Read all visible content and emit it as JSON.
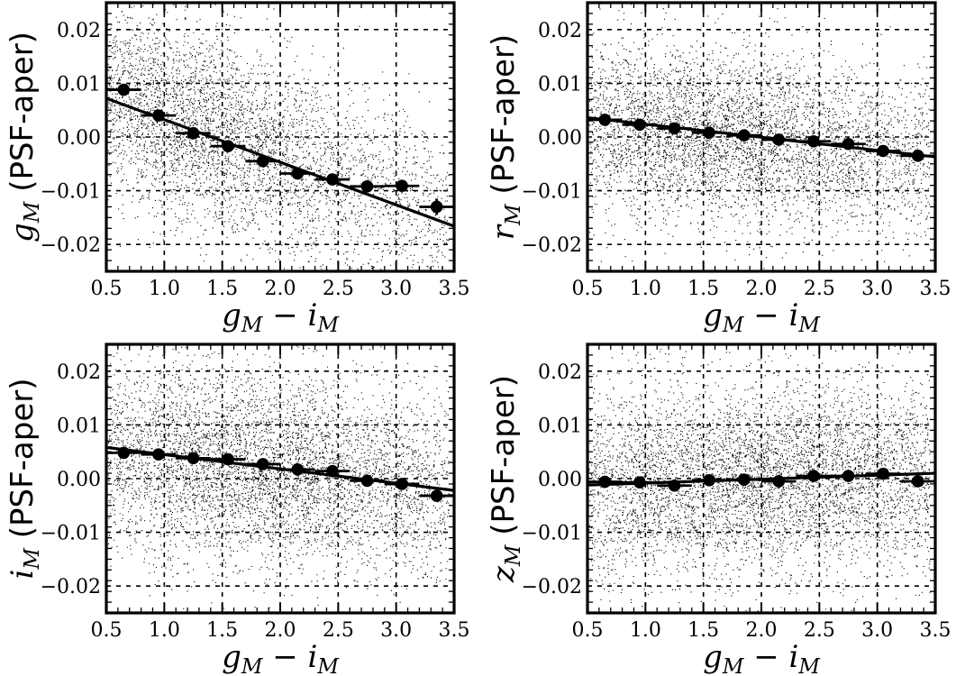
{
  "figure": {
    "title": "",
    "axes_style": {
      "frame_color": "#000000",
      "grid_color": "#000000",
      "point_color": "#000000"
    }
  },
  "chart_data": [
    {
      "id": "g",
      "type": "scatter",
      "title": "",
      "xlabel_main": "g",
      "xlabel_sub1": "M",
      "xlabel_op": " − ",
      "xlabel_main2": "i",
      "xlabel_sub2": "M",
      "ylabel_main": "g",
      "ylabel_sub": "M",
      "ylabel_rest": " (PSF-aper)",
      "xlim": [
        0.5,
        3.5
      ],
      "ylim": [
        -0.025,
        0.025
      ],
      "xticks": [
        0.5,
        1.0,
        1.5,
        2.0,
        2.5,
        3.0,
        3.5
      ],
      "xtick_labels": [
        "0.5",
        "1.0",
        "1.5",
        "2.0",
        "2.5",
        "3.0",
        "3.5"
      ],
      "yticks": [
        -0.02,
        -0.01,
        0.0,
        0.01,
        0.02
      ],
      "ytick_labels": [
        "−0.02",
        "−0.01",
        "0.00",
        "0.01",
        "0.02"
      ],
      "grid": true,
      "scatter_density": {
        "center_x": 1.3,
        "spread_x": 0.6,
        "center_y": 0.002,
        "spread_y": 0.009,
        "slope": -0.008,
        "n": 6500
      },
      "binned_points": {
        "x": [
          0.65,
          0.95,
          1.25,
          1.55,
          1.85,
          2.15,
          2.45,
          2.75,
          3.05,
          3.35
        ],
        "y": [
          0.0088,
          0.004,
          0.0007,
          -0.0017,
          -0.0045,
          -0.0068,
          -0.0079,
          -0.0092,
          -0.0091,
          -0.013
        ],
        "xerr": [
          0.15,
          0.15,
          0.15,
          0.15,
          0.15,
          0.15,
          0.15,
          0.15,
          0.15,
          0.15
        ],
        "yerr": [
          0.0008,
          0.0006,
          0.0005,
          0.0005,
          0.0005,
          0.0005,
          0.0005,
          0.0006,
          0.0008,
          0.0015
        ]
      },
      "fit_line": {
        "x": [
          0.5,
          3.5
        ],
        "y": [
          0.0072,
          -0.0166
        ]
      }
    },
    {
      "id": "r",
      "type": "scatter",
      "title": "",
      "xlabel_main": "g",
      "xlabel_sub1": "M",
      "xlabel_op": " − ",
      "xlabel_main2": "i",
      "xlabel_sub2": "M",
      "ylabel_main": "r",
      "ylabel_sub": "M",
      "ylabel_rest": " (PSF-aper)",
      "xlim": [
        0.5,
        3.5
      ],
      "ylim": [
        -0.025,
        0.025
      ],
      "xticks": [
        0.5,
        1.0,
        1.5,
        2.0,
        2.5,
        3.0,
        3.5
      ],
      "xtick_labels": [
        "0.5",
        "1.0",
        "1.5",
        "2.0",
        "2.5",
        "3.0",
        "3.5"
      ],
      "yticks": [
        -0.02,
        -0.01,
        0.0,
        0.01,
        0.02
      ],
      "ytick_labels": [
        "−0.02",
        "−0.01",
        "0.00",
        "0.01",
        "0.02"
      ],
      "grid": true,
      "scatter_density": {
        "center_x": 1.6,
        "spread_x": 0.75,
        "center_y": 0.0,
        "spread_y": 0.008,
        "slope": -0.002,
        "n": 6500
      },
      "binned_points": {
        "x": [
          0.65,
          0.95,
          1.25,
          1.55,
          1.85,
          2.15,
          2.45,
          2.75,
          3.05,
          3.35
        ],
        "y": [
          0.0032,
          0.0023,
          0.0016,
          0.0008,
          0.0003,
          -0.0005,
          -0.0008,
          -0.0013,
          -0.0026,
          -0.0035
        ],
        "xerr": [
          0.15,
          0.15,
          0.15,
          0.15,
          0.15,
          0.15,
          0.15,
          0.15,
          0.15,
          0.15
        ],
        "yerr": [
          0.0005,
          0.0005,
          0.0004,
          0.0004,
          0.0004,
          0.0004,
          0.0004,
          0.0004,
          0.0005,
          0.0006
        ]
      },
      "fit_line": {
        "x": [
          0.5,
          3.5
        ],
        "y": [
          0.0036,
          -0.0037
        ]
      }
    },
    {
      "id": "i",
      "type": "scatter",
      "title": "",
      "xlabel_main": "g",
      "xlabel_sub1": "M",
      "xlabel_op": " − ",
      "xlabel_main2": "i",
      "xlabel_sub2": "M",
      "ylabel_main": "i",
      "ylabel_sub": "M",
      "ylabel_rest": " (PSF-aper)",
      "xlim": [
        0.5,
        3.5
      ],
      "ylim": [
        -0.025,
        0.025
      ],
      "xticks": [
        0.5,
        1.0,
        1.5,
        2.0,
        2.5,
        3.0,
        3.5
      ],
      "xtick_labels": [
        "0.5",
        "1.0",
        "1.5",
        "2.0",
        "2.5",
        "3.0",
        "3.5"
      ],
      "yticks": [
        -0.02,
        -0.01,
        0.0,
        0.01,
        0.02
      ],
      "ytick_labels": [
        "−0.02",
        "−0.01",
        "0.00",
        "0.01",
        "0.02"
      ],
      "grid": true,
      "scatter_density": {
        "center_x": 1.8,
        "spread_x": 0.8,
        "center_y": 0.002,
        "spread_y": 0.009,
        "slope": -0.002,
        "n": 7000
      },
      "binned_points": {
        "x": [
          0.65,
          0.95,
          1.25,
          1.55,
          1.85,
          2.15,
          2.45,
          2.75,
          3.05,
          3.35
        ],
        "y": [
          0.0048,
          0.0045,
          0.0038,
          0.0036,
          0.0027,
          0.0017,
          0.0014,
          -0.0004,
          -0.001,
          -0.0032
        ],
        "xerr": [
          0.15,
          0.15,
          0.15,
          0.15,
          0.15,
          0.15,
          0.15,
          0.15,
          0.15,
          0.15
        ],
        "yerr": [
          0.0005,
          0.0005,
          0.0004,
          0.0004,
          0.0004,
          0.0004,
          0.0004,
          0.0004,
          0.0005,
          0.0006
        ]
      },
      "fit_line": {
        "x": [
          0.5,
          3.5
        ],
        "y": [
          0.0058,
          -0.0022
        ]
      }
    },
    {
      "id": "z",
      "type": "scatter",
      "title": "",
      "xlabel_main": "g",
      "xlabel_sub1": "M",
      "xlabel_op": " − ",
      "xlabel_main2": "i",
      "xlabel_sub2": "M",
      "ylabel_main": "z",
      "ylabel_sub": "M",
      "ylabel_rest": " (PSF-aper)",
      "xlim": [
        0.5,
        3.5
      ],
      "ylim": [
        -0.025,
        0.025
      ],
      "xticks": [
        0.5,
        1.0,
        1.5,
        2.0,
        2.5,
        3.0,
        3.5
      ],
      "xtick_labels": [
        "0.5",
        "1.0",
        "1.5",
        "2.0",
        "2.5",
        "3.0",
        "3.5"
      ],
      "yticks": [
        -0.02,
        -0.01,
        0.0,
        0.01,
        0.02
      ],
      "ytick_labels": [
        "−0.02",
        "−0.01",
        "0.00",
        "0.01",
        "0.02"
      ],
      "grid": true,
      "scatter_density": {
        "center_x": 2.0,
        "spread_x": 0.85,
        "center_y": 0.0,
        "spread_y": 0.009,
        "slope": 0.0007,
        "n": 7000
      },
      "binned_points": {
        "x": [
          0.65,
          0.95,
          1.25,
          1.55,
          1.85,
          2.15,
          2.45,
          2.75,
          3.05,
          3.35
        ],
        "y": [
          -0.0006,
          -0.0007,
          -0.0013,
          -0.0003,
          -0.0002,
          -0.0005,
          0.0005,
          0.0005,
          0.0009,
          -0.0005
        ],
        "xerr": [
          0.15,
          0.15,
          0.15,
          0.15,
          0.15,
          0.15,
          0.15,
          0.15,
          0.15,
          0.15
        ],
        "yerr": [
          0.0005,
          0.0005,
          0.0004,
          0.0004,
          0.0004,
          0.0004,
          0.0004,
          0.0004,
          0.0005,
          0.0006
        ]
      },
      "fit_line": {
        "x": [
          0.5,
          3.5
        ],
        "y": [
          -0.0012,
          0.001
        ]
      }
    }
  ]
}
